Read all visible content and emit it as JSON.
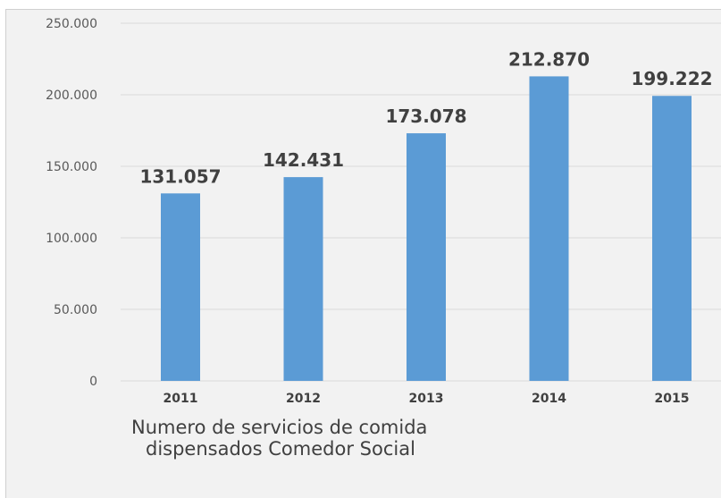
{
  "chart_data": {
    "type": "bar",
    "categories": [
      "2011",
      "2012",
      "2013",
      "2014",
      "2015"
    ],
    "values": [
      131057,
      142431,
      173078,
      212870,
      199222
    ],
    "data_labels": [
      "131.057",
      "142.431",
      "173.078",
      "212.870",
      "199.222"
    ],
    "title": "",
    "xlabel": "",
    "ylabel": "",
    "ylim": [
      0,
      250000
    ],
    "yticks": [
      0,
      50000,
      100000,
      150000,
      200000,
      250000
    ],
    "ytick_labels": [
      "0",
      "50.000",
      "100.000",
      "150.000",
      "200.000",
      "250.000"
    ],
    "grid": true,
    "legend": "none",
    "bar_color": "#5b9bd5"
  },
  "caption": {
    "line1": "Numero de servicios de comida",
    "line2": "dispensados  Comedor Social"
  }
}
